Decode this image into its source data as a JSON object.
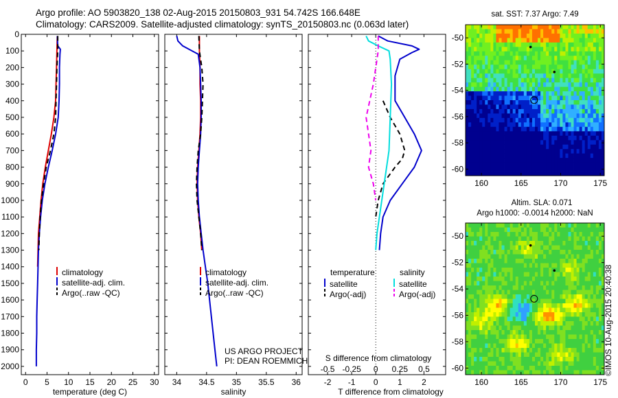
{
  "header": {
    "line1": "Argo profile: AO 5903820_138 02-Aug-2015 20150803_931 54.742S 166.648E",
    "line2": "Climatology: CARS2009. Satellite-adjusted climatology: synTS_20150803.nc (0.063d later)"
  },
  "footer": {
    "project": "US ARGO PROJECT",
    "pi": "PI: DEAN ROEMMICH",
    "stamp": "©IMOS 10-Aug-2015 20:40:38"
  },
  "chart_data": [
    {
      "type": "line",
      "panel": "temperature",
      "xlabel": "temperature (deg C)",
      "ylabel": "",
      "xlim": [
        -1,
        31
      ],
      "ylim": [
        2050,
        0
      ],
      "xticks": [
        0,
        5,
        10,
        15,
        20,
        25,
        30
      ],
      "yticks": [
        0,
        100,
        200,
        300,
        400,
        500,
        600,
        700,
        800,
        900,
        1000,
        1100,
        1200,
        1300,
        1400,
        1500,
        1600,
        1700,
        1800,
        1900,
        2000
      ],
      "legend": "bottom-left",
      "series": [
        {
          "name": "climatology",
          "color": "#dd0000",
          "dash": "solid",
          "depth": [
            10,
            100,
            200,
            300,
            400,
            500,
            600,
            700,
            800,
            900,
            1000,
            1100,
            1200,
            1300,
            1400
          ],
          "value": [
            7.4,
            7.3,
            7.2,
            7.1,
            7.0,
            6.6,
            6.0,
            5.3,
            4.6,
            4.0,
            3.6,
            3.3,
            3.0,
            2.9,
            2.8
          ]
        },
        {
          "name": "satellite-adj. clim.",
          "color": "#0000cc",
          "dash": "solid",
          "depth": [
            10,
            70,
            90,
            120,
            200,
            300,
            400,
            500,
            600,
            700,
            800,
            900,
            1000,
            1100,
            1200,
            1300,
            1400,
            1500,
            1600,
            1700,
            1800,
            1900,
            2000
          ],
          "value": [
            7.4,
            7.5,
            8.1,
            8.0,
            7.9,
            7.9,
            7.8,
            7.6,
            7.0,
            6.2,
            5.3,
            4.5,
            3.9,
            3.5,
            3.2,
            3.0,
            2.9,
            2.8,
            2.7,
            2.6,
            2.6,
            2.5,
            2.5
          ]
        },
        {
          "name": "Argo(..raw -QC)",
          "color": "#000000",
          "dash": "dash",
          "depth": [
            10,
            100,
            200,
            300,
            400,
            500,
            600,
            700,
            800,
            900,
            1000,
            1100,
            1200,
            1300
          ],
          "value": [
            7.5,
            7.5,
            7.3,
            7.2,
            7.1,
            7.0,
            6.6,
            5.8,
            4.8,
            4.2,
            3.7,
            3.4,
            3.2,
            3.1
          ]
        }
      ]
    },
    {
      "type": "line",
      "panel": "salinity",
      "xlabel": "salinity",
      "ylabel": "",
      "xlim": [
        33.8,
        36.1
      ],
      "ylim": [
        2050,
        0
      ],
      "xticks": [
        34,
        34.5,
        35,
        35.5,
        36
      ],
      "legend": "bottom-left",
      "series": [
        {
          "name": "climatology",
          "color": "#dd0000",
          "dash": "solid",
          "depth": [
            10,
            100,
            200,
            300,
            400,
            500,
            600,
            700,
            800,
            900,
            1000,
            1100,
            1200,
            1300
          ],
          "value": [
            34.38,
            34.38,
            34.39,
            34.39,
            34.4,
            34.4,
            34.39,
            34.37,
            34.35,
            34.34,
            34.35,
            34.37,
            34.4,
            34.42
          ]
        },
        {
          "name": "satellite-adj. clim.",
          "color": "#0000cc",
          "dash": "solid",
          "depth": [
            10,
            40,
            70,
            120,
            200,
            300,
            400,
            500,
            600,
            700,
            800,
            900,
            1000,
            1100,
            1200,
            1300,
            1400,
            1500,
            1600,
            1700,
            1800,
            1900,
            2000
          ],
          "value": [
            34.0,
            34.02,
            34.1,
            34.36,
            34.39,
            34.4,
            34.41,
            34.41,
            34.4,
            34.38,
            34.36,
            34.35,
            34.36,
            34.38,
            34.41,
            34.44,
            34.48,
            34.52,
            34.55,
            34.58,
            34.61,
            34.64,
            34.67
          ]
        },
        {
          "name": "Argo(..raw -QC)",
          "color": "#000000",
          "dash": "dash",
          "depth": [
            10,
            100,
            200,
            300,
            400,
            500,
            600,
            700,
            800,
            900,
            1000,
            1100,
            1200,
            1300
          ],
          "value": [
            34.37,
            34.38,
            34.42,
            34.44,
            34.43,
            34.42,
            34.4,
            34.36,
            34.34,
            34.33,
            34.34,
            34.37,
            34.4,
            34.42
          ]
        }
      ]
    },
    {
      "type": "line",
      "panel": "differences",
      "xlabel": "T difference from climatology",
      "x2label": "S difference from climatology",
      "xlim": [
        -2.8,
        2.9
      ],
      "ylim": [
        2050,
        0
      ],
      "xticks": [
        -2,
        -1,
        0,
        1,
        2
      ],
      "x2ticks": [
        "-0.5",
        "-0.25",
        "0",
        "0.25",
        "0.5"
      ],
      "legend": "bottom",
      "legend_titles": [
        "temperature",
        "salinity"
      ],
      "series": [
        {
          "name": "satellite",
          "group": "temperature",
          "color": "#0000cc",
          "dash": "solid",
          "depth": [
            10,
            40,
            70,
            90,
            110,
            150,
            250,
            400,
            500,
            600,
            700,
            800,
            900,
            1000,
            1100,
            1200,
            1300
          ],
          "value": [
            0.1,
            0.5,
            1.5,
            1.8,
            1.5,
            1.0,
            0.8,
            0.8,
            1.2,
            1.6,
            1.9,
            1.6,
            1.1,
            0.6,
            0.3,
            0.2,
            0.15
          ]
        },
        {
          "name": "Argo(-adj)",
          "group": "temperature",
          "color": "#000000",
          "dash": "dash",
          "depth": [
            400,
            500,
            600,
            700,
            750,
            800,
            900,
            1000,
            1100
          ],
          "value": [
            0.3,
            0.6,
            1.0,
            1.2,
            1.1,
            0.8,
            0.3,
            0.1,
            0.0
          ]
        },
        {
          "name": "satellite",
          "group": "salinity",
          "color": "#00dddd",
          "dash": "solid",
          "depth": [
            10,
            40,
            70,
            100,
            150,
            300,
            500,
            700,
            800,
            900,
            1000,
            1100,
            1200,
            1300
          ],
          "value": [
            -0.4,
            -0.3,
            0.1,
            0.55,
            0.6,
            0.65,
            0.6,
            0.55,
            0.45,
            0.35,
            0.25,
            0.15,
            0.05,
            0.0
          ]
        },
        {
          "name": "Argo(-adj)",
          "group": "salinity",
          "color": "#ee00ee",
          "dash": "dash",
          "depth": [
            10,
            100,
            300,
            500,
            600,
            700,
            800,
            900,
            1000
          ],
          "value": [
            0.1,
            0.1,
            -0.1,
            -0.4,
            -0.3,
            -0.2,
            -0.3,
            -0.1,
            0.0
          ]
        }
      ]
    },
    {
      "type": "heatmap",
      "panel": "sst-map",
      "title": "sat. SST: 7.37  Argo: 7.49",
      "xlim": [
        158,
        175.5
      ],
      "ylim": [
        -60.5,
        -49
      ],
      "xticks": [
        160,
        165,
        170,
        175
      ],
      "yticks": [
        -50,
        -52,
        -54,
        -56,
        -58,
        -60
      ],
      "argo_position": [
        166.648,
        -54.742
      ]
    },
    {
      "type": "heatmap",
      "panel": "sla-map",
      "title": "Altim. SLA: 0.071",
      "subtitle": "Argo h1000: -0.0014 h2000: NaN",
      "xlim": [
        158,
        175.5
      ],
      "ylim": [
        -60.5,
        -49
      ],
      "xticks": [
        160,
        165,
        170,
        175
      ],
      "yticks": [
        -50,
        -52,
        -54,
        -56,
        -58,
        -60
      ],
      "argo_position": [
        166.648,
        -54.742
      ]
    }
  ]
}
